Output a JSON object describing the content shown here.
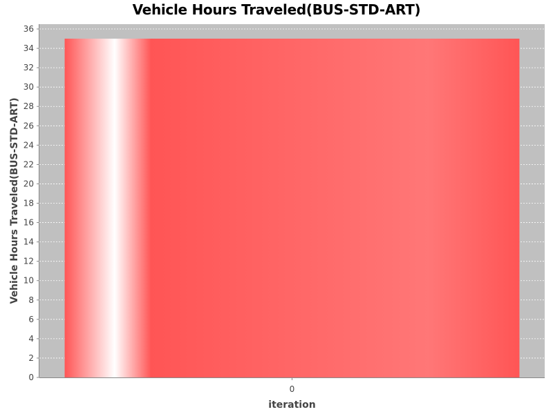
{
  "chart_data": {
    "type": "bar",
    "title": "Vehicle Hours Traveled(BUS-STD-ART)",
    "xlabel": "iteration",
    "ylabel": "Vehicle Hours Traveled(BUS-STD-ART)",
    "categories": [
      "0"
    ],
    "values": [
      35
    ],
    "ylim": [
      0,
      36.5
    ],
    "yticks": [
      0,
      2,
      4,
      6,
      8,
      10,
      12,
      14,
      16,
      18,
      20,
      22,
      24,
      26,
      28,
      30,
      32,
      34,
      36
    ],
    "grid": true,
    "legend": "none",
    "colors": {
      "plot_background": "#c0c0c0",
      "bar": "#ff5555",
      "gridline": "#ffffff"
    }
  }
}
